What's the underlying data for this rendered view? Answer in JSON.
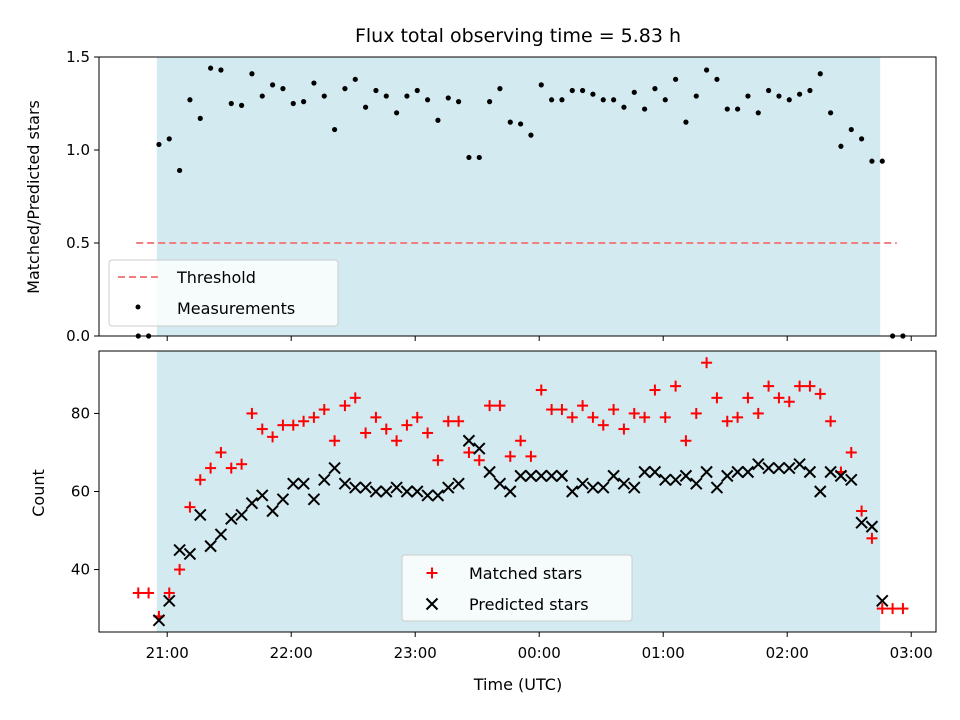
{
  "title": "Flux total observing time = 5.83 h",
  "xlabel": "Time (UTC)",
  "x_ticks": [
    "21:00",
    "22:00",
    "23:00",
    "00:00",
    "01:00",
    "02:00",
    "03:00"
  ],
  "colors": {
    "shade": "#d3eaf0",
    "threshold": "#f08080",
    "measurement": "#000000",
    "matched": "#ff0000",
    "predicted": "#000000"
  },
  "chart_data": [
    {
      "type": "scatter",
      "ylabel": "Matched/Predicted stars",
      "ylim": [
        0,
        1.5
      ],
      "y_ticks": [
        "0.0",
        "0.5",
        "1.0",
        "1.5"
      ],
      "x_range_minutes_from_21h": [
        -33,
        372
      ],
      "observing_window": [
        "20:55",
        "02:45"
      ],
      "threshold": {
        "name": "Threshold",
        "value": 0.5,
        "from": "20:45",
        "to": "02:53",
        "style": "dashed"
      },
      "legend": {
        "entries": [
          "Threshold",
          "Measurements"
        ],
        "placement": "lower-left"
      },
      "series": [
        {
          "name": "Measurements",
          "x": [
            "20:46",
            "20:51",
            "20:56",
            "21:01",
            "21:06",
            "21:11",
            "21:16",
            "21:21",
            "21:26",
            "21:31",
            "21:36",
            "21:41",
            "21:46",
            "21:51",
            "21:56",
            "22:01",
            "22:06",
            "22:11",
            "22:16",
            "22:21",
            "22:26",
            "22:31",
            "22:36",
            "22:41",
            "22:46",
            "22:51",
            "22:56",
            "23:01",
            "23:06",
            "23:11",
            "23:16",
            "23:21",
            "23:26",
            "23:31",
            "23:36",
            "23:41",
            "23:46",
            "23:51",
            "23:56",
            "00:01",
            "00:06",
            "00:11",
            "00:16",
            "00:21",
            "00:26",
            "00:31",
            "00:36",
            "00:41",
            "00:46",
            "00:51",
            "00:56",
            "01:01",
            "01:06",
            "01:11",
            "01:16",
            "01:21",
            "01:26",
            "01:31",
            "01:36",
            "01:41",
            "01:46",
            "01:51",
            "01:56",
            "02:01",
            "02:06",
            "02:11",
            "02:16",
            "02:21",
            "02:26",
            "02:31",
            "02:36",
            "02:41",
            "02:46",
            "02:51",
            "02:56"
          ],
          "y": [
            0.0,
            0.0,
            1.03,
            1.06,
            0.89,
            1.27,
            1.17,
            1.44,
            1.43,
            1.25,
            1.24,
            1.41,
            1.29,
            1.35,
            1.33,
            1.25,
            1.26,
            1.36,
            1.29,
            1.11,
            1.33,
            1.38,
            1.23,
            1.32,
            1.29,
            1.2,
            1.29,
            1.32,
            1.27,
            1.16,
            1.28,
            1.26,
            0.96,
            0.96,
            1.26,
            1.33,
            1.15,
            1.14,
            1.08,
            1.35,
            1.27,
            1.27,
            1.32,
            1.32,
            1.3,
            1.27,
            1.27,
            1.23,
            1.31,
            1.22,
            1.33,
            1.27,
            1.38,
            1.15,
            1.29,
            1.43,
            1.38,
            1.22,
            1.22,
            1.29,
            1.2,
            1.32,
            1.29,
            1.27,
            1.3,
            1.32,
            1.41,
            1.2,
            1.02,
            1.11,
            1.06,
            0.94,
            0.94,
            0.0,
            0.0
          ]
        }
      ]
    },
    {
      "type": "scatter",
      "ylabel": "Count",
      "ylim": [
        24,
        96
      ],
      "y_ticks": [
        "40",
        "60",
        "80"
      ],
      "x_range_minutes_from_21h": [
        -33,
        372
      ],
      "observing_window": [
        "20:55",
        "02:45"
      ],
      "legend": {
        "entries": [
          "Matched stars",
          "Predicted stars"
        ],
        "placement": "lower-center"
      },
      "series": [
        {
          "name": "Matched stars",
          "x": [
            "20:46",
            "20:51",
            "20:56",
            "21:01",
            "21:06",
            "21:11",
            "21:16",
            "21:21",
            "21:26",
            "21:31",
            "21:36",
            "21:41",
            "21:46",
            "21:51",
            "21:56",
            "22:01",
            "22:06",
            "22:11",
            "22:16",
            "22:21",
            "22:26",
            "22:31",
            "22:36",
            "22:41",
            "22:46",
            "22:51",
            "22:56",
            "23:01",
            "23:06",
            "23:11",
            "23:16",
            "23:21",
            "23:26",
            "23:31",
            "23:36",
            "23:41",
            "23:46",
            "23:51",
            "23:56",
            "00:01",
            "00:06",
            "00:11",
            "00:16",
            "00:21",
            "00:26",
            "00:31",
            "00:36",
            "00:41",
            "00:46",
            "00:51",
            "00:56",
            "01:01",
            "01:06",
            "01:11",
            "01:16",
            "01:21",
            "01:26",
            "01:31",
            "01:36",
            "01:41",
            "01:46",
            "01:51",
            "01:56",
            "02:01",
            "02:06",
            "02:11",
            "02:16",
            "02:21",
            "02:26",
            "02:31",
            "02:36",
            "02:41",
            "02:46",
            "02:51",
            "02:56"
          ],
          "y": [
            34,
            34,
            28,
            34,
            40,
            56,
            63,
            66,
            70,
            66,
            67,
            80,
            76,
            74,
            77,
            77,
            78,
            79,
            81,
            73,
            82,
            84,
            75,
            79,
            76,
            73,
            77,
            79,
            75,
            68,
            78,
            78,
            70,
            68,
            82,
            82,
            69,
            73,
            69,
            86,
            81,
            81,
            79,
            82,
            79,
            77,
            81,
            76,
            80,
            79,
            86,
            79,
            87,
            73,
            80,
            93,
            84,
            78,
            79,
            84,
            80,
            87,
            84,
            83,
            87,
            87,
            85,
            78,
            65,
            70,
            55,
            48,
            30,
            30,
            30
          ]
        },
        {
          "name": "Predicted stars",
          "x": [
            "20:56",
            "21:01",
            "21:06",
            "21:11",
            "21:16",
            "21:21",
            "21:26",
            "21:31",
            "21:36",
            "21:41",
            "21:46",
            "21:51",
            "21:56",
            "22:01",
            "22:06",
            "22:11",
            "22:16",
            "22:21",
            "22:26",
            "22:31",
            "22:36",
            "22:41",
            "22:46",
            "22:51",
            "22:56",
            "23:01",
            "23:06",
            "23:11",
            "23:16",
            "23:21",
            "23:26",
            "23:31",
            "23:36",
            "23:41",
            "23:46",
            "23:51",
            "23:56",
            "00:01",
            "00:06",
            "00:11",
            "00:16",
            "00:21",
            "00:26",
            "00:31",
            "00:36",
            "00:41",
            "00:46",
            "00:51",
            "00:56",
            "01:01",
            "01:06",
            "01:11",
            "01:16",
            "01:21",
            "01:26",
            "01:31",
            "01:36",
            "01:41",
            "01:46",
            "01:51",
            "01:56",
            "02:01",
            "02:06",
            "02:11",
            "02:16",
            "02:21",
            "02:26",
            "02:31",
            "02:36",
            "02:41",
            "02:46"
          ],
          "y": [
            27,
            32,
            45,
            44,
            54,
            46,
            49,
            53,
            54,
            57,
            59,
            55,
            58,
            62,
            62,
            58,
            63,
            66,
            62,
            61,
            61,
            60,
            60,
            61,
            60,
            60,
            59,
            59,
            61,
            62,
            73,
            71,
            65,
            62,
            60,
            64,
            64,
            64,
            64,
            64,
            60,
            62,
            61,
            61,
            64,
            62,
            61,
            65,
            65,
            63,
            63,
            64,
            62,
            65,
            61,
            64,
            65,
            65,
            67,
            66,
            66,
            66,
            67,
            65,
            60,
            65,
            64,
            63,
            52,
            51,
            32
          ]
        }
      ]
    }
  ]
}
